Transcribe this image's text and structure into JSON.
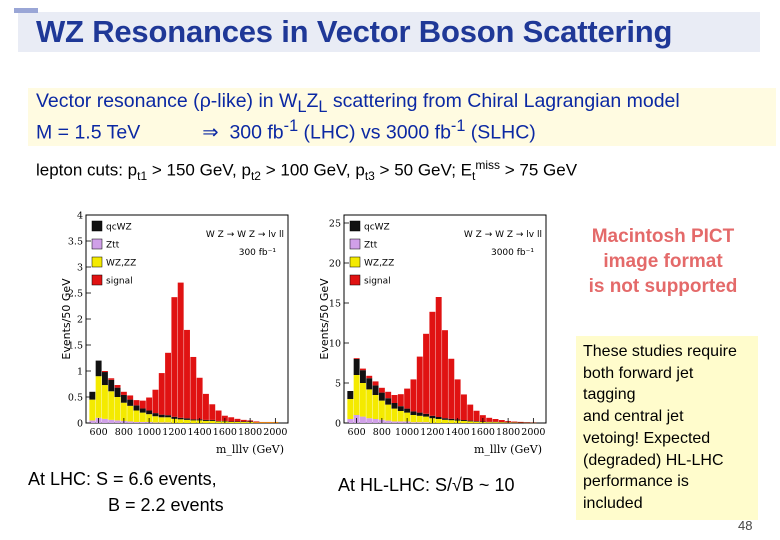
{
  "slide": {
    "title": "WZ Resonances in Vector Boson Scattering",
    "intro_line1": {
      "prefix": "Vector resonance (",
      "rho": "ρ",
      "mid": "-like) in W",
      "sub_l1": "L",
      "z": "Z",
      "sub_l2": "L",
      "suffix": " scattering from Chiral Lagrangian model"
    },
    "intro_line2": {
      "mass": "M = 1.5 TeV",
      "arrow": "⇒",
      "lhc": "300 fb",
      "lhc_exp": "-1",
      "lhc_label": " (LHC) vs  3000 fb",
      "slhc_exp": "-1",
      "slhc_label": " (SLHC)"
    },
    "cuts": {
      "a": "lepton cuts: p",
      "s1": "t1",
      "b": " > 150 GeV, p",
      "s2": "t2",
      "c": " > 100 GeV, p",
      "s3": "t3",
      "d": " > 50 GeV; E",
      "s4": "t",
      "sup4": "miss",
      "e": " > 75 GeV"
    },
    "pict_placeholder": [
      "Macintosh PICT",
      "image format",
      "is not supported"
    ],
    "note": [
      "These studies require",
      "both forward jet",
      "tagging",
      "and central jet",
      "vetoing! Expected",
      "(degraded) HL-LHC",
      "performance is",
      "included"
    ],
    "caption_lhc": [
      "At LHC: S = 6.6 events,",
      "B = 2.2 events"
    ],
    "caption_hllhc": {
      "prefix": "At HL-LHC: S/",
      "sqrt": "√",
      "suffix": "B ~ 10"
    },
    "page_number": "48"
  },
  "chart_data": [
    {
      "type": "bar",
      "stacked": true,
      "title": "",
      "xlabel": "m_lllv (GeV)",
      "ylabel": "Events/50 GeV",
      "process": "W Z → W Z → lv ll",
      "luminosity": "300 fb⁻¹",
      "xlim": [
        500,
        2100
      ],
      "ylim": [
        0,
        4
      ],
      "x_ticks": [
        "600",
        "800",
        "1000",
        "1200",
        "1400",
        "1600",
        "1800",
        "2000"
      ],
      "y_ticks": [
        "0",
        "0.5",
        "1",
        "1.5",
        "2",
        "2.5",
        "3",
        "3.5",
        "4"
      ],
      "legend": [
        "qcWZ",
        "Ztt",
        "WZ,ZZ",
        "signal"
      ],
      "colors": {
        "qcWZ": "#111111",
        "Ztt": "#d0a0e8",
        "WZ,ZZ": "#f4ea00",
        "signal": "#e01212"
      },
      "bin_width": 50,
      "bins": [
        550,
        600,
        650,
        700,
        750,
        800,
        850,
        900,
        950,
        1000,
        1050,
        1100,
        1150,
        1200,
        1250,
        1300,
        1350,
        1400,
        1450,
        1500,
        1550,
        1600,
        1650,
        1700,
        1750,
        1800,
        1850,
        1900,
        1950,
        2000
      ],
      "series": [
        {
          "name": "Ztt",
          "values": [
            0.05,
            0.1,
            0.08,
            0.06,
            0.05,
            0.04,
            0.03,
            0.02,
            0.02,
            0.02,
            0.01,
            0.01,
            0.01,
            0,
            0,
            0,
            0,
            0,
            0,
            0,
            0,
            0,
            0,
            0,
            0,
            0,
            0,
            0,
            0,
            0
          ]
        },
        {
          "name": "WZ,ZZ",
          "values": [
            0.4,
            0.8,
            0.65,
            0.55,
            0.45,
            0.35,
            0.3,
            0.22,
            0.18,
            0.15,
            0.12,
            0.1,
            0.1,
            0.08,
            0.07,
            0.06,
            0.05,
            0.05,
            0.04,
            0.04,
            0.03,
            0.03,
            0.02,
            0.02,
            0.02,
            0.02,
            0.01,
            0.01,
            0.01,
            0.01
          ]
        },
        {
          "name": "qcWZ",
          "values": [
            0.15,
            0.3,
            0.25,
            0.22,
            0.18,
            0.15,
            0.12,
            0.1,
            0.08,
            0.07,
            0.06,
            0.05,
            0.04,
            0.04,
            0.03,
            0.03,
            0.02,
            0.02,
            0.02,
            0.02,
            0.01,
            0.01,
            0.01,
            0.01,
            0.01,
            0.01,
            0,
            0,
            0,
            0
          ]
        },
        {
          "name": "signal",
          "values": [
            0.0,
            0.0,
            0.02,
            0.03,
            0.05,
            0.06,
            0.08,
            0.1,
            0.15,
            0.25,
            0.45,
            0.8,
            1.2,
            2.3,
            2.6,
            1.7,
            1.2,
            0.8,
            0.5,
            0.3,
            0.2,
            0.1,
            0.08,
            0.05,
            0.03,
            0.02,
            0.02,
            0.01,
            0.01,
            0.01
          ]
        }
      ]
    },
    {
      "type": "bar",
      "stacked": true,
      "title": "",
      "xlabel": "m_lllv (GeV)",
      "ylabel": "Events/50 GeV",
      "process": "W Z → W Z → lv ll",
      "luminosity": "3000 fb⁻¹",
      "xlim": [
        500,
        2100
      ],
      "ylim": [
        0,
        26
      ],
      "x_ticks": [
        "600",
        "800",
        "1000",
        "1200",
        "1400",
        "1600",
        "1800",
        "2000"
      ],
      "y_ticks": [
        "0",
        "5",
        "10",
        "15",
        "20",
        "25"
      ],
      "legend": [
        "qcWZ",
        "Ztt",
        "WZ,ZZ",
        "signal"
      ],
      "colors": {
        "qcWZ": "#111111",
        "Ztt": "#d0a0e8",
        "WZ,ZZ": "#f4ea00",
        "signal": "#e01212"
      },
      "bin_width": 50,
      "bins": [
        550,
        600,
        650,
        700,
        750,
        800,
        850,
        900,
        950,
        1000,
        1050,
        1100,
        1150,
        1200,
        1250,
        1300,
        1350,
        1400,
        1450,
        1500,
        1550,
        1600,
        1650,
        1700,
        1750,
        1800,
        1850,
        1900,
        1950,
        2000
      ],
      "series": [
        {
          "name": "Ztt",
          "values": [
            0.5,
            1.0,
            0.8,
            0.6,
            0.5,
            0.4,
            0.3,
            0.2,
            0.2,
            0.2,
            0.1,
            0.1,
            0.1,
            0,
            0,
            0,
            0,
            0,
            0,
            0,
            0,
            0,
            0,
            0,
            0,
            0,
            0,
            0,
            0,
            0
          ]
        },
        {
          "name": "WZ,ZZ",
          "values": [
            2.5,
            5.0,
            4.2,
            3.6,
            3.0,
            2.4,
            2.0,
            1.6,
            1.3,
            1.1,
            0.9,
            0.8,
            0.7,
            0.6,
            0.5,
            0.4,
            0.35,
            0.3,
            0.25,
            0.2,
            0.15,
            0.12,
            0.1,
            0.1,
            0.08,
            0.06,
            0.05,
            0.04,
            0.03,
            0.03
          ]
        },
        {
          "name": "qcWZ",
          "values": [
            1.0,
            2.0,
            1.6,
            1.4,
            1.2,
            1.0,
            0.8,
            0.7,
            0.6,
            0.5,
            0.45,
            0.4,
            0.35,
            0.3,
            0.25,
            0.2,
            0.18,
            0.15,
            0.12,
            0.1,
            0.08,
            0.06,
            0.05,
            0.05,
            0.04,
            0.03,
            0.03,
            0.02,
            0.02,
            0.02
          ]
        },
        {
          "name": "signal",
          "values": [
            0,
            0.1,
            0.2,
            0.3,
            0.5,
            0.6,
            0.8,
            1.0,
            1.5,
            2.5,
            4.0,
            7.0,
            10.0,
            13.0,
            15.0,
            11.0,
            7.5,
            5.0,
            3.2,
            2.0,
            1.3,
            0.8,
            0.5,
            0.35,
            0.25,
            0.15,
            0.1,
            0.08,
            0.05,
            0.03
          ]
        }
      ]
    }
  ]
}
